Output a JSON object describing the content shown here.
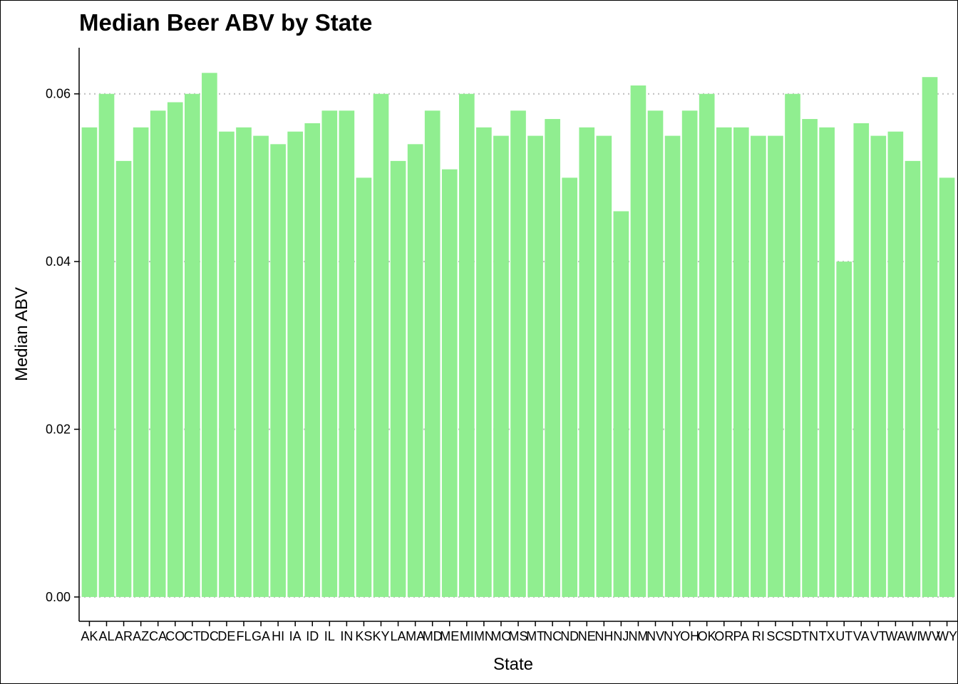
{
  "chart_data": {
    "type": "bar",
    "title": "Median Beer ABV by State",
    "xlabel": "State",
    "ylabel": "Median ABV",
    "ylim": [
      -0.0029,
      0.0655
    ],
    "yticks": [
      "0.00",
      "0.02",
      "0.04",
      "0.06"
    ],
    "ytick_values": [
      0.0,
      0.02,
      0.04,
      0.06
    ],
    "grid": "horizontal dotted",
    "bar_color": "#90EE90",
    "grid_color": "#bebebe",
    "categories": [
      "AK",
      "AL",
      "AR",
      "AZ",
      "CA",
      "CO",
      "CT",
      "DC",
      "DE",
      "FL",
      "GA",
      "HI",
      "IA",
      "ID",
      "IL",
      "IN",
      "KS",
      "KY",
      "LA",
      "MA",
      "MD",
      "ME",
      "MI",
      "MN",
      "MO",
      "MS",
      "MT",
      "NC",
      "ND",
      "NE",
      "NH",
      "NJ",
      "NM",
      "NV",
      "NY",
      "OH",
      "OK",
      "OR",
      "PA",
      "RI",
      "SC",
      "SD",
      "TN",
      "TX",
      "UT",
      "VA",
      "VT",
      "WA",
      "WI",
      "WV",
      "WY"
    ],
    "values": [
      0.056,
      0.06,
      0.052,
      0.056,
      0.058,
      0.059,
      0.06,
      0.0625,
      0.0555,
      0.056,
      0.055,
      0.054,
      0.0555,
      0.0565,
      0.058,
      0.058,
      0.05,
      0.06,
      0.052,
      0.054,
      0.058,
      0.051,
      0.06,
      0.056,
      0.055,
      0.058,
      0.055,
      0.057,
      0.05,
      0.056,
      0.055,
      0.046,
      0.061,
      0.058,
      0.055,
      0.058,
      0.06,
      0.056,
      0.056,
      0.055,
      0.055,
      0.06,
      0.057,
      0.056,
      0.04,
      0.0565,
      0.055,
      0.0555,
      0.052,
      0.062,
      0.05
    ]
  }
}
